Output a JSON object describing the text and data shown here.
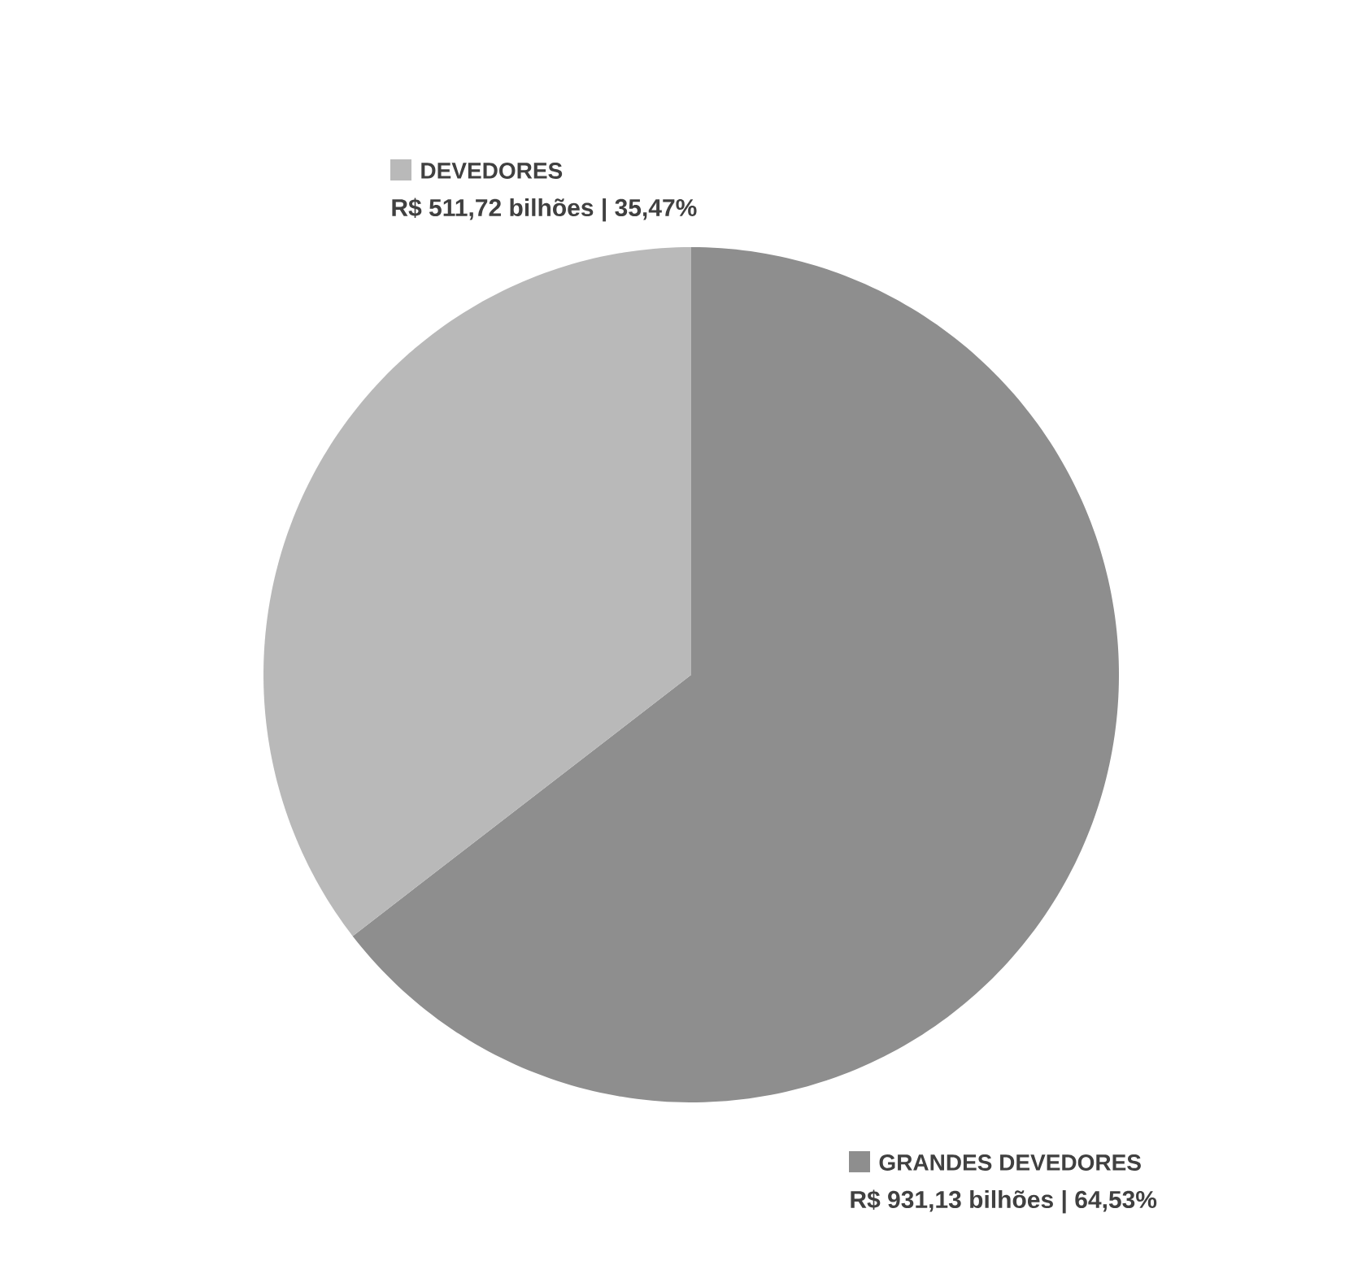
{
  "chart_data": {
    "type": "pie",
    "categories": [
      "GRANDES DEVEDORES",
      "DEVEDORES"
    ],
    "values": [
      931.13,
      511.72
    ],
    "value_labels": [
      "R$ 931,13 bilhões | 64,53%",
      "R$ 511,72 bilhões | 35,47%"
    ],
    "colors": [
      "#8e8e8e",
      "#b9b9b9"
    ],
    "legend": "top right"
  }
}
